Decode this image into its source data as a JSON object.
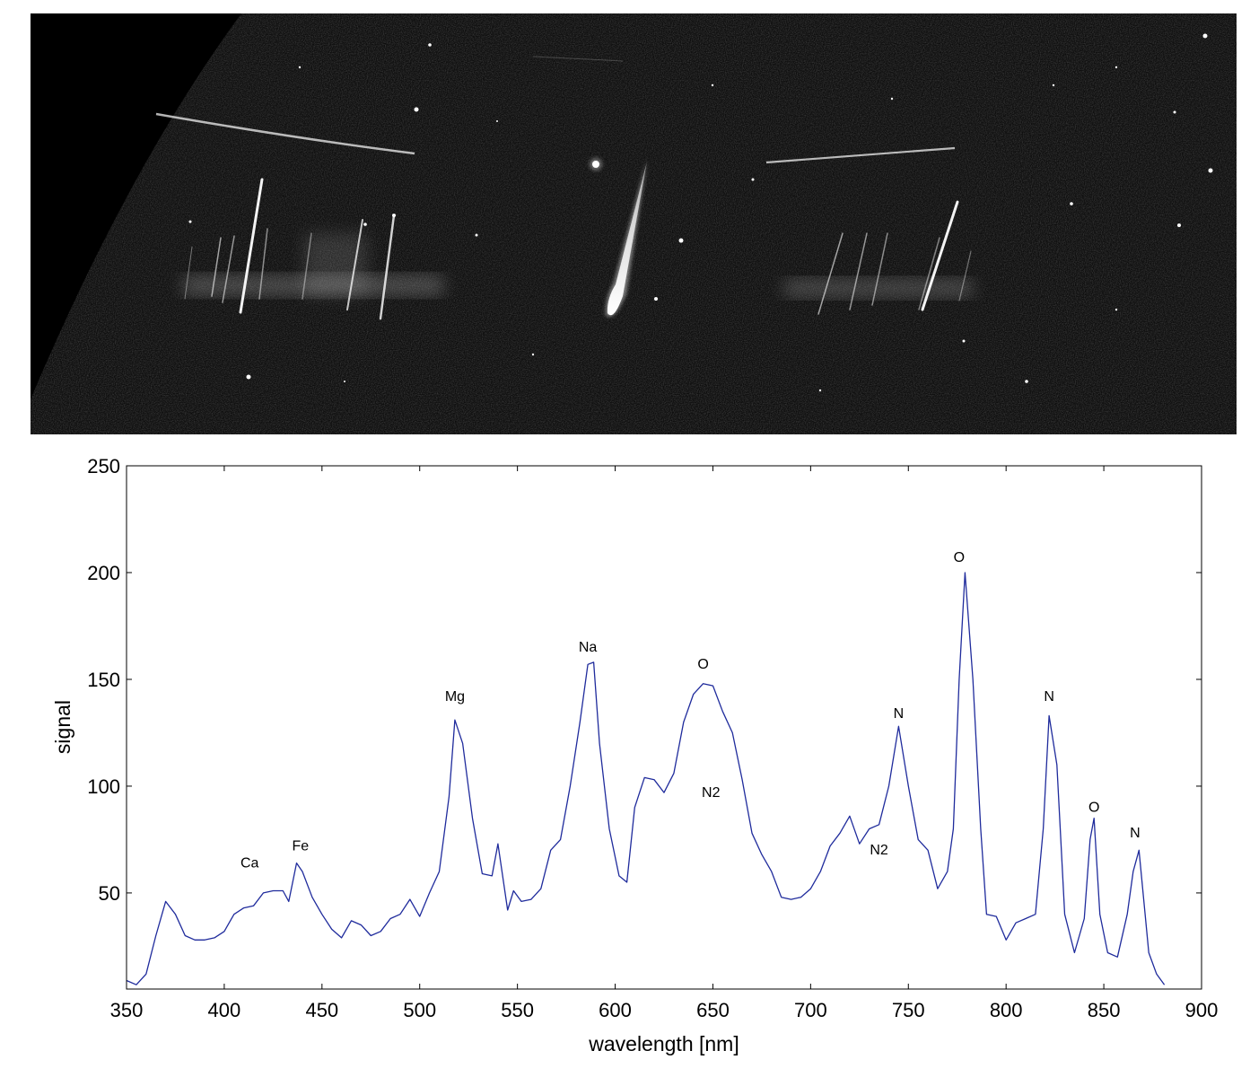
{
  "photo": {
    "background_color": "#0e0e0e",
    "sky_edge_color": "#000000",
    "meteor_color": "#ffffff"
  },
  "chart_data": {
    "type": "line",
    "title": "",
    "xlabel": "wavelength [nm]",
    "ylabel": "signal",
    "xlim": [
      350,
      900
    ],
    "ylim": [
      5,
      250
    ],
    "xticks": [
      350,
      400,
      450,
      500,
      550,
      600,
      650,
      700,
      750,
      800,
      850,
      900
    ],
    "yticks": [
      50,
      100,
      150,
      200,
      250
    ],
    "grid": false,
    "line_color": "#1f2b9c",
    "series": [
      {
        "x": [
          350,
          355,
          360,
          365,
          370,
          375,
          380,
          385,
          390,
          395,
          400,
          405,
          410,
          415,
          420,
          425,
          430,
          433,
          437,
          440,
          445,
          450,
          455,
          460,
          465,
          470,
          475,
          480,
          485,
          490,
          495,
          500,
          505,
          510,
          515,
          518,
          522,
          527,
          532,
          537,
          540,
          545,
          548,
          552,
          557,
          562,
          567,
          572,
          577,
          582,
          586,
          589,
          592,
          597,
          602,
          606,
          610,
          615,
          620,
          625,
          630,
          635,
          640,
          645,
          650,
          655,
          660,
          665,
          670,
          675,
          680,
          685,
          690,
          695,
          700,
          705,
          710,
          715,
          720,
          725,
          730,
          735,
          740,
          745,
          750,
          755,
          760,
          765,
          770,
          773,
          776,
          779,
          783,
          787,
          790,
          795,
          800,
          805,
          810,
          815,
          819,
          822,
          826,
          830,
          835,
          840,
          843,
          845,
          848,
          852,
          857,
          862,
          865,
          868,
          873,
          877,
          881
        ],
        "y": [
          9,
          7,
          12,
          30,
          46,
          40,
          30,
          28,
          28,
          29,
          32,
          40,
          43,
          44,
          50,
          51,
          51,
          46,
          64,
          60,
          48,
          40,
          33,
          29,
          37,
          35,
          30,
          32,
          38,
          40,
          47,
          39,
          50,
          60,
          95,
          131,
          120,
          85,
          59,
          58,
          73,
          42,
          51,
          46,
          47,
          52,
          70,
          75,
          100,
          130,
          157,
          158,
          120,
          80,
          58,
          55,
          90,
          104,
          103,
          97,
          106,
          130,
          143,
          148,
          147,
          135,
          125,
          103,
          78,
          68,
          60,
          48,
          47,
          48,
          52,
          60,
          72,
          78,
          86,
          73,
          80,
          82,
          100,
          128,
          100,
          75,
          70,
          52,
          60,
          80,
          150,
          200,
          150,
          80,
          40,
          39,
          28,
          36,
          38,
          40,
          80,
          133,
          110,
          40,
          22,
          38,
          75,
          85,
          40,
          22,
          20,
          40,
          60,
          70,
          22,
          12,
          7
        ]
      }
    ],
    "annotations": [
      {
        "label": "Ca",
        "x": 413,
        "y": 62
      },
      {
        "label": "Fe",
        "x": 439,
        "y": 70
      },
      {
        "label": "Mg",
        "x": 518,
        "y": 140
      },
      {
        "label": "Na",
        "x": 586,
        "y": 163
      },
      {
        "label": "O",
        "x": 645,
        "y": 155
      },
      {
        "label": "N2",
        "x": 649,
        "y": 95
      },
      {
        "label": "N2",
        "x": 735,
        "y": 68
      },
      {
        "label": "N",
        "x": 745,
        "y": 132
      },
      {
        "label": "O",
        "x": 776,
        "y": 205
      },
      {
        "label": "N",
        "x": 822,
        "y": 140
      },
      {
        "label": "O",
        "x": 845,
        "y": 88
      },
      {
        "label": "N",
        "x": 866,
        "y": 76
      }
    ]
  }
}
